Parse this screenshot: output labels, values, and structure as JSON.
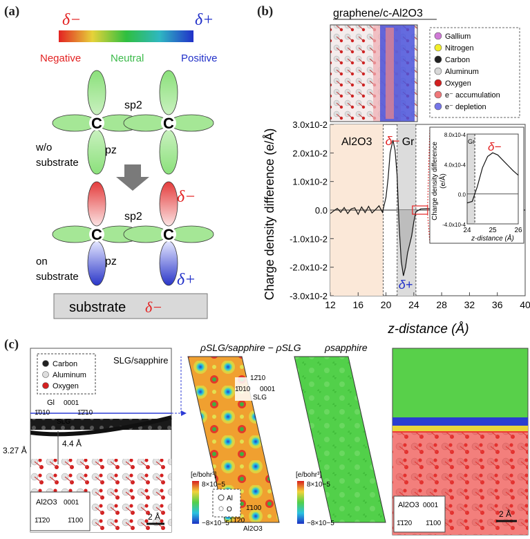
{
  "panels": {
    "a": {
      "label": "(a)",
      "scale": {
        "neg_symbol": "δ−",
        "pos_symbol": "δ+",
        "neg": "Negative",
        "neutral": "Neutral",
        "pos": "Positive"
      },
      "atom": "C",
      "sp2": "sp2",
      "pz": "pz",
      "wo_label": [
        "w/o",
        "substrate"
      ],
      "on_label": [
        "on",
        "substrate"
      ],
      "delta_neg": "δ−",
      "delta_pos": "δ+",
      "substrate_box": "substrate",
      "substrate_delta": "δ−"
    },
    "b": {
      "label": "(b)",
      "title": "graphene/c-Al2O3",
      "legend": [
        {
          "label": "Gallium",
          "color": "#d07ad6"
        },
        {
          "label": "Nitrogen",
          "color": "#f2ee2a"
        },
        {
          "label": "Carbon",
          "color": "#222222"
        },
        {
          "label": "Aluminum",
          "color": "#d8d8d8"
        },
        {
          "label": "Oxygen",
          "color": "#d32020"
        },
        {
          "label": "e⁻ accumulation",
          "color": "#f0787a"
        },
        {
          "label": "e⁻ depletion",
          "color": "#7676e8"
        }
      ],
      "chart_data": {
        "type": "line",
        "xlabel": "z-distance (Å)",
        "ylabel": "Charge density difference (e/Å)",
        "xlim": [
          12,
          40
        ],
        "ylim": [
          -0.03,
          0.03
        ],
        "xticks": [
          "12",
          "16",
          "20",
          "24",
          "28",
          "32",
          "36",
          "40"
        ],
        "yticks": [
          "3.0x10-2",
          "2.0x10-2",
          "1.0x10-2",
          "0.0",
          "-1.0x10-2",
          "-2.0x10-2",
          "-3.0x10-2"
        ],
        "region_labels": {
          "al2o3": "Al2O3",
          "gr": "Gr",
          "delta_neg": "δ−",
          "delta_pos": "δ+"
        },
        "x": [
          12,
          12.5,
          13,
          13.5,
          14,
          14.5,
          15,
          15.5,
          16,
          16.5,
          17,
          17.5,
          18,
          18.5,
          19,
          19.5,
          20,
          20.3,
          20.6,
          21,
          21.3,
          21.6,
          21.9,
          22.2,
          22.5,
          22.8,
          23.1,
          23.4,
          23.7,
          24,
          24.3,
          25,
          26,
          28,
          40
        ],
        "y": [
          -0.0012,
          -0.0003,
          0.0006,
          -0.0008,
          0.0009,
          -0.0012,
          0.0004,
          0.0008,
          -0.0015,
          0.0011,
          -0.0009,
          0.0013,
          -0.001,
          0.0002,
          0.0015,
          -0.0008,
          0.0045,
          0.011,
          0.02,
          0.0245,
          0.021,
          0.012,
          -0.006,
          -0.018,
          -0.023,
          -0.02,
          -0.015,
          -0.012,
          -0.009,
          -0.004,
          -0.0006,
          0.0004,
          0.0005,
          0.0001,
          0.0
        ]
      },
      "inset": {
        "xlabel": "z-distance (Å)",
        "ylabel": [
          "Charge density difference",
          "(e/Å)"
        ],
        "xticks": [
          "24",
          "25",
          "26"
        ],
        "yticks": [
          "8.0x10-4",
          "4.0x10-4",
          "0.0",
          "-4.0x10-4"
        ],
        "gr": "Gr",
        "delta_neg": "δ−",
        "x": [
          24.0,
          24.2,
          24.4,
          24.6,
          24.8,
          25.0,
          25.2,
          25.4,
          25.6,
          25.8,
          26.0
        ],
        "y": [
          -0.00012,
          -0.0001,
          0.0001,
          0.00035,
          0.0005,
          0.00055,
          0.00052,
          0.00045,
          0.00038,
          0.00031,
          0.00025
        ]
      }
    },
    "c": {
      "label": "(c)",
      "sub1": {
        "title": "SLG/sapphire",
        "legend": [
          {
            "label": "Carbon",
            "color": "#222222"
          },
          {
            "label": "Aluminum",
            "color": "#dddddd"
          },
          {
            "label": "Oxygen",
            "color": "#d32020"
          }
        ],
        "axes_top": {
          "left": "1̄010",
          "center": "0001",
          "right": "1̄2̄10",
          "name": "SLG",
          "gl": "Gl"
        },
        "dist_a": "3.27 Å",
        "dist_b": "4.4 Å",
        "axes_bottom": {
          "name": "Al2O3",
          "up": "0001",
          "left": "1̄1̄20",
          "right": "1̄100"
        },
        "scale": "2 Å"
      },
      "sub2": {
        "title": "ρSLG/sapphire − ρSLG",
        "axes": {
          "up": "12̄10",
          "left": "1̄010",
          "right": "0001",
          "name": "SLG"
        },
        "units": "[e/bohr³]",
        "cb_max": "8×10−5",
        "cb_min": "−8×10−5",
        "legend_al": "Al",
        "legend_o": "O",
        "axes2": {
          "up": "1̄100",
          "left": "1̄1̄20",
          "name": "Al2O3"
        }
      },
      "sub3": {
        "title": "ρsapphire",
        "units": "[e/bohr³]",
        "cb_max": "8×10−5",
        "cb_min": "−8×10−5"
      },
      "sub4": {
        "axes": {
          "name": "Al2O3",
          "up": "0001",
          "left": "1̄1̄20",
          "right": "1̄100"
        },
        "scale": "2 Å"
      }
    }
  }
}
